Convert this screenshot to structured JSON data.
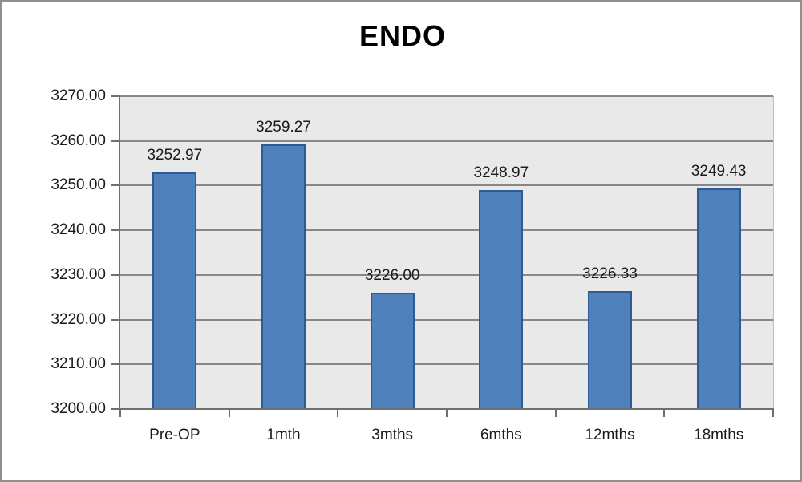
{
  "title": "ENDO",
  "chart_data": {
    "type": "bar",
    "title": "ENDO",
    "categories": [
      "Pre-OP",
      "1mth",
      "3mths",
      "6mths",
      "12mths",
      "18mths"
    ],
    "values": [
      3252.97,
      3259.27,
      3226.0,
      3248.97,
      3226.33,
      3249.43
    ],
    "data_labels": [
      "3252.97",
      "3259.27",
      "3226.00",
      "3248.97",
      "3226.33",
      "3249.43"
    ],
    "xlabel": "",
    "ylabel": "",
    "ylim": [
      3200,
      3270
    ],
    "ytick_step": 10,
    "ytick_labels": [
      "3270.00",
      "3260.00",
      "3250.00",
      "3240.00",
      "3230.00",
      "3220.00",
      "3210.00",
      "3200.00"
    ],
    "grid": true,
    "legend_position": "none",
    "colors": {
      "bar_fill": "#4f81bd",
      "bar_border": "#2e5b94",
      "plot_background": "#e9e9e9",
      "gridline": "#878787",
      "axis": "#6f6f6f",
      "frame_border": "#8f8f8f",
      "text": "#1a1a1a"
    }
  }
}
